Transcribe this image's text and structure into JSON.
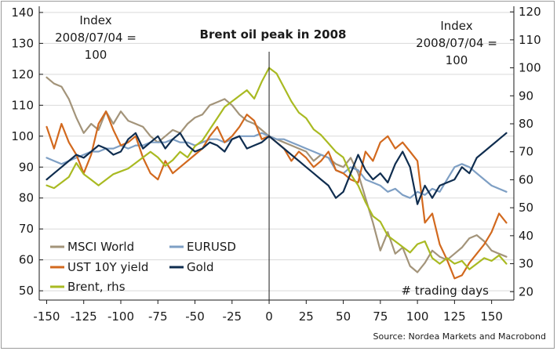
{
  "chart_data": {
    "type": "line",
    "title": "Brent oil peak in 2008",
    "left_axis_label": [
      "Index",
      "2008/07/04 =",
      "100"
    ],
    "right_axis_label": [
      "Index",
      "2008/07/04 =",
      "100"
    ],
    "xlabel": "# trading days",
    "source": "Source: Nordea Markets and Macrobond",
    "xlim": [
      -155,
      165
    ],
    "ylim_left": [
      47,
      142
    ],
    "ylim_right": [
      17,
      122
    ],
    "x_ticks": [
      -150,
      -125,
      -100,
      -75,
      -50,
      -25,
      0,
      25,
      50,
      75,
      100,
      125,
      150
    ],
    "x_tick_labels": [
      "-150",
      "-125",
      "-100",
      "-75",
      "-50",
      "-25",
      "0",
      "25",
      "50",
      "75",
      "100",
      "125",
      "150"
    ],
    "y_ticks_left": [
      50,
      60,
      70,
      80,
      90,
      100,
      110,
      120,
      130,
      140
    ],
    "y_tick_labels_left": [
      "50",
      "60",
      "70",
      "80",
      "90",
      "100",
      "110",
      "120",
      "130",
      "140"
    ],
    "y_ticks_right": [
      20,
      30,
      40,
      50,
      60,
      70,
      80,
      90,
      100,
      110,
      120
    ],
    "y_tick_labels_right": [
      "20",
      "30",
      "40",
      "50",
      "60",
      "70",
      "80",
      "90",
      "100",
      "110",
      "120"
    ],
    "vline_x": 0,
    "series": [
      {
        "name": "MSCI World",
        "axis": "left",
        "color": "#a3947a",
        "x": [
          -150,
          -145,
          -140,
          -135,
          -130,
          -125,
          -120,
          -115,
          -110,
          -105,
          -100,
          -95,
          -90,
          -85,
          -80,
          -75,
          -70,
          -65,
          -60,
          -55,
          -50,
          -45,
          -40,
          -35,
          -30,
          -25,
          -20,
          -15,
          -10,
          -5,
          0,
          5,
          10,
          15,
          20,
          25,
          30,
          35,
          40,
          45,
          50,
          55,
          60,
          65,
          70,
          75,
          80,
          85,
          90,
          95,
          100,
          105,
          110,
          115,
          120,
          125,
          130,
          135,
          140,
          145,
          150,
          155,
          160
        ],
        "y": [
          119,
          117,
          116,
          112,
          106,
          101,
          104,
          102,
          108,
          104,
          108,
          105,
          104,
          103,
          100,
          98,
          100,
          102,
          101,
          104,
          106,
          107,
          110,
          111,
          112,
          110,
          107,
          105,
          104,
          102,
          100,
          99,
          98,
          97,
          96,
          95,
          92,
          94,
          93,
          91,
          90,
          93,
          88,
          80,
          72,
          63,
          69,
          62,
          64,
          58,
          56,
          59,
          63,
          61,
          60,
          62,
          64,
          67,
          68,
          66,
          63,
          62,
          61
        ]
      },
      {
        "name": "EURUSD",
        "axis": "left",
        "color": "#7e9fc4",
        "x": [
          -150,
          -145,
          -140,
          -135,
          -130,
          -125,
          -120,
          -115,
          -110,
          -105,
          -100,
          -95,
          -90,
          -85,
          -80,
          -75,
          -70,
          -65,
          -60,
          -55,
          -50,
          -45,
          -40,
          -35,
          -30,
          -25,
          -20,
          -15,
          -10,
          -5,
          0,
          5,
          10,
          15,
          20,
          25,
          30,
          35,
          40,
          45,
          50,
          55,
          60,
          65,
          70,
          75,
          80,
          85,
          90,
          95,
          100,
          105,
          110,
          115,
          120,
          125,
          130,
          135,
          140,
          145,
          150,
          155,
          160
        ],
        "y": [
          93,
          92,
          91,
          92,
          93,
          94,
          95,
          95,
          96,
          96,
          97,
          96,
          97,
          97,
          98,
          98,
          98,
          99,
          98,
          98,
          97,
          98,
          99,
          99,
          98,
          99,
          100,
          100,
          100,
          101,
          100,
          99,
          99,
          98,
          97,
          96,
          95,
          94,
          93,
          89,
          88,
          90,
          89,
          86,
          85,
          84,
          82,
          83,
          81,
          80,
          82,
          81,
          83,
          82,
          86,
          90,
          91,
          90,
          88,
          86,
          84,
          83,
          82
        ]
      },
      {
        "name": "UST 10Y yield",
        "axis": "left",
        "color": "#d2691e",
        "x": [
          -150,
          -145,
          -140,
          -135,
          -130,
          -125,
          -120,
          -115,
          -110,
          -105,
          -100,
          -95,
          -90,
          -85,
          -80,
          -75,
          -70,
          -65,
          -60,
          -55,
          -50,
          -45,
          -40,
          -35,
          -30,
          -25,
          -20,
          -15,
          -10,
          -5,
          0,
          5,
          10,
          15,
          20,
          25,
          30,
          35,
          40,
          45,
          50,
          55,
          60,
          65,
          70,
          75,
          80,
          85,
          90,
          95,
          100,
          105,
          110,
          115,
          120,
          125,
          130,
          135,
          140,
          145,
          150,
          155,
          160
        ],
        "y": [
          103,
          96,
          104,
          98,
          94,
          88,
          94,
          104,
          108,
          102,
          97,
          98,
          100,
          93,
          88,
          86,
          92,
          88,
          90,
          92,
          94,
          96,
          100,
          103,
          98,
          100,
          103,
          107,
          105,
          99,
          100,
          98,
          96,
          92,
          95,
          93,
          90,
          92,
          95,
          89,
          88,
          86,
          85,
          95,
          92,
          98,
          100,
          96,
          98,
          95,
          92,
          72,
          75,
          65,
          60,
          54,
          55,
          59,
          62,
          65,
          69,
          75,
          72
        ]
      },
      {
        "name": "Gold",
        "axis": "left",
        "color": "#0f2d4f",
        "x": [
          -150,
          -145,
          -140,
          -135,
          -130,
          -125,
          -120,
          -115,
          -110,
          -105,
          -100,
          -95,
          -90,
          -85,
          -80,
          -75,
          -70,
          -65,
          -60,
          -55,
          -50,
          -45,
          -40,
          -35,
          -30,
          -25,
          -20,
          -15,
          -10,
          -5,
          0,
          5,
          10,
          15,
          20,
          25,
          30,
          35,
          40,
          45,
          50,
          55,
          60,
          65,
          70,
          75,
          80,
          85,
          90,
          95,
          100,
          105,
          110,
          115,
          120,
          125,
          130,
          135,
          140,
          145,
          150,
          155,
          160
        ],
        "y": [
          86,
          88,
          90,
          92,
          94,
          93,
          95,
          97,
          96,
          94,
          95,
          99,
          101,
          96,
          98,
          100,
          96,
          99,
          101,
          97,
          95,
          96,
          98,
          97,
          95,
          99,
          100,
          96,
          97,
          98,
          100,
          98,
          96,
          94,
          92,
          90,
          88,
          86,
          84,
          80,
          82,
          88,
          94,
          89,
          86,
          88,
          85,
          91,
          95,
          90,
          78,
          84,
          80,
          84,
          85,
          86,
          90,
          88,
          93,
          95,
          97,
          99,
          101
        ]
      },
      {
        "name": "Brent, rhs",
        "axis": "right",
        "color": "#a9ba22",
        "x": [
          -150,
          -145,
          -140,
          -135,
          -130,
          -125,
          -120,
          -115,
          -110,
          -105,
          -100,
          -95,
          -90,
          -85,
          -80,
          -75,
          -70,
          -65,
          -60,
          -55,
          -50,
          -45,
          -40,
          -35,
          -30,
          -25,
          -20,
          -15,
          -10,
          -5,
          0,
          5,
          10,
          15,
          20,
          25,
          30,
          35,
          40,
          45,
          50,
          55,
          60,
          65,
          70,
          75,
          80,
          85,
          90,
          95,
          100,
          105,
          110,
          115,
          120,
          125,
          130,
          135,
          140,
          145,
          150,
          155,
          160
        ],
        "y": [
          58,
          57,
          59,
          61,
          66,
          62,
          60,
          58,
          60,
          62,
          63,
          64,
          66,
          68,
          70,
          68,
          65,
          67,
          70,
          68,
          72,
          74,
          78,
          82,
          86,
          88,
          90,
          92,
          89,
          95,
          100,
          98,
          93,
          88,
          84,
          82,
          78,
          76,
          73,
          70,
          68,
          62,
          58,
          52,
          47,
          45,
          40,
          38,
          36,
          34,
          37,
          38,
          32,
          30,
          32,
          30,
          31,
          28,
          30,
          32,
          31,
          33,
          30
        ]
      }
    ],
    "legend": [
      {
        "name": "MSCI World",
        "color": "#a3947a"
      },
      {
        "name": "EURUSD",
        "color": "#7e9fc4"
      },
      {
        "name": "UST 10Y yield",
        "color": "#d2691e"
      },
      {
        "name": "Gold",
        "color": "#0f2d4f"
      },
      {
        "name": "Brent, rhs",
        "color": "#a9ba22"
      }
    ]
  }
}
